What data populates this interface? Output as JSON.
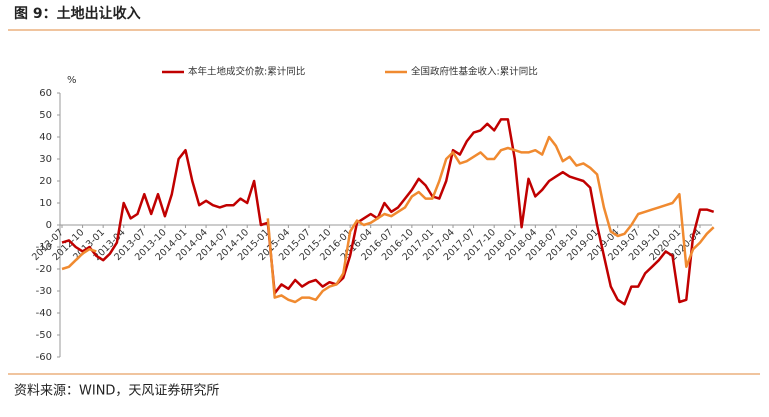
{
  "chart_data": {
    "type": "line",
    "title": "图 9：土地出让收入",
    "y_label": "%",
    "source": "资料来源：WIND，天风证券研究所",
    "categories": [
      "2012-07",
      null,
      null,
      "2012-10",
      null,
      null,
      "2013-01",
      null,
      null,
      "2013-04",
      null,
      null,
      "2013-07",
      null,
      null,
      "2013-10",
      null,
      null,
      "2014-01",
      null,
      null,
      "2014-04",
      null,
      null,
      "2014-07",
      null,
      null,
      "2014-10",
      null,
      null,
      "2015-01",
      null,
      null,
      "2015-04",
      null,
      null,
      "2015-07",
      null,
      null,
      "2015-10",
      null,
      null,
      "2016-01",
      null,
      null,
      "2016-04",
      null,
      null,
      "2016-07",
      null,
      null,
      "2016-10",
      null,
      null,
      "2017-01",
      null,
      null,
      "2017-04",
      null,
      null,
      "2017-07",
      null,
      null,
      "2017-10",
      null,
      null,
      "2018-01",
      null,
      null,
      "2018-04",
      null,
      null,
      "2018-07",
      null,
      null,
      "2018-10",
      null,
      null,
      "2019-01",
      null,
      null,
      "2019-04",
      null,
      null,
      "2019-07",
      null,
      null,
      "2019-10",
      null,
      null,
      "2020-01",
      null,
      null,
      "2020-04",
      null,
      null
    ],
    "series": [
      {
        "name": "本年土地成交价款:累计同比",
        "color": "#c00000",
        "values": [
          -8,
          -7,
          -10,
          -12,
          -10,
          -14,
          -16,
          -13,
          -8,
          10,
          3,
          5,
          14,
          5,
          14,
          4,
          14,
          30,
          34,
          20,
          9,
          11,
          9,
          8,
          9,
          9,
          12,
          10,
          20,
          0,
          1,
          -31,
          -27,
          -29,
          -25,
          -28,
          -26,
          -25,
          -28,
          -26,
          -27,
          -24,
          -14,
          1,
          3,
          5,
          3,
          10,
          6,
          8,
          12,
          16,
          21,
          18,
          13,
          12,
          20,
          34,
          32,
          38,
          42,
          43,
          46,
          43,
          48,
          48,
          30,
          -1,
          21,
          13,
          16,
          20,
          22,
          24,
          22,
          21,
          20,
          17,
          0,
          -14,
          -28,
          -34,
          -36,
          -28,
          -28,
          -22,
          -19,
          -16,
          -12,
          -14,
          -35,
          -34,
          -5,
          7,
          7,
          6
        ]
      },
      {
        "name": "全国政府性基金收入:累计同比",
        "color": "#f08a30",
        "values": [
          -20,
          -19,
          -16,
          -13,
          -11,
          -12,
          null,
          null,
          null,
          null,
          null,
          null,
          null,
          null,
          null,
          null,
          null,
          null,
          null,
          null,
          null,
          null,
          null,
          null,
          null,
          null,
          null,
          null,
          null,
          null,
          3,
          -33,
          -32,
          -34,
          -35,
          -33,
          -33,
          -34,
          -30,
          -28,
          -27,
          -22,
          -3,
          2,
          0,
          1,
          3,
          5,
          4,
          6,
          8,
          13,
          15,
          12,
          12,
          20,
          30,
          33,
          28,
          29,
          31,
          33,
          30,
          30,
          34,
          35,
          34,
          33,
          33,
          34,
          32,
          40,
          36,
          29,
          31,
          27,
          28,
          26,
          23,
          8,
          -3,
          -5,
          -4,
          0,
          5,
          6,
          7,
          8,
          9,
          10,
          14,
          -19,
          -11,
          -8,
          -4,
          -1
        ]
      }
    ],
    "ylim": [
      -60,
      60
    ],
    "yticks": [
      -60,
      -50,
      -40,
      -30,
      -20,
      -10,
      0,
      10,
      20,
      30,
      40,
      50,
      60
    ]
  }
}
